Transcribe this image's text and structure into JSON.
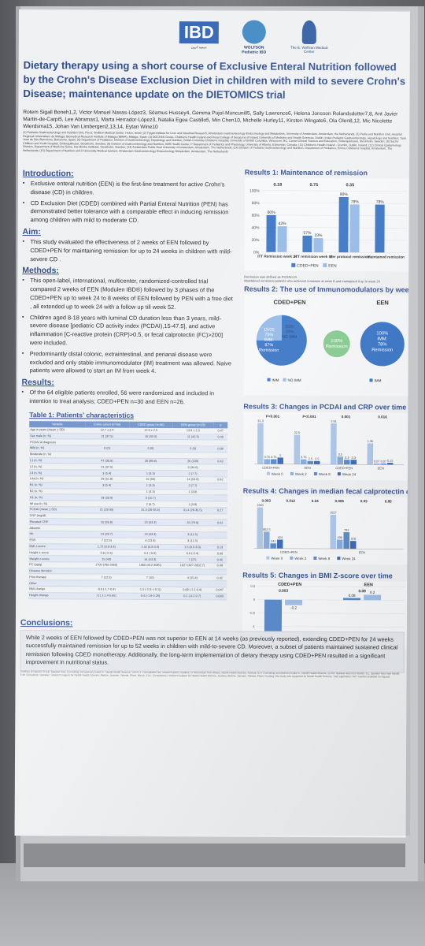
{
  "logos": {
    "ibd": "IBD",
    "ibd_sub": "جمعية كرون",
    "wolfson": "WOLFSON",
    "wolfson_sub": "Pediatric IBD",
    "edith": "The E. Wolfson Medical Center"
  },
  "title": "Dietary therapy using a short course of Exclusive Enteral Nutrition followed by the Crohn's Disease Exclusion Diet in children with mild to severe Crohn's Disease; maintenance update on the DIETOMICS trial",
  "authors": "Rotem Sigall Boneh1,2, Victor Manuel Navas-López3, Séamus Hussey4, Gemma Pujol-Muncunill5, Sally Lawrence6, Helena Jonsson Rolandsdotter7,8, Ant Javier Martin-de-Carpi5, Lee Abramas1, Marta Herrador-López3, Natalia Egea Castillo5, Min Chen10, Michelle Hurley11, Kirsten Wingate6, Ola Olen8,12, Mic Nicolette Wierdsma15, Johan Van Limbergen2,13,14, Eytan Wine10",
  "affiliations": "(1) Pediatric Gastroenterology and Nutrition Unit, The E. Wolfson Medical Center, Holon, Israel; (2) Tytgat Institute for Liver and Intestinal Research, Amsterdam Gastroenterology Endocrinology and Metabolism, University of Amsterdam, Amsterdam, the Netherlands; (3) Pedia and Nutrition Unit, Hospital Regional Universitario de Málaga, Biomedical Research Institute of Málaga (IBIMA), Málaga, Spain; (4) DOCHAS Group, Children's Health Ireland and Royal College of Surgeons of Ireland University of Medicine and Health Sciences, Dublin, Irelan Pediatric Gastroenterology, Hepatology and Nutrition, Sant Joan de Déu Barcelona, Barcelona, Spain; (6) Department of Pediatrics, Division of Gastroenterology, Hepatology and Nutrition, British Columbia Children's Hospital, University of British Columbia, Vancouver, BC, Canad Clinical Science and Education, Södersjukhuset, Stockholm, Sweden; (8) Sachs' Children and Youth Hospital, Södersjukhuset, Stockholm, Sweden; (9) Division of Gastroenterology and Nutrition, KBR Health Center, P Department of Pediatrics and Physiology, University of Alberta, Edmonton, Canada; (11) Children's Health Ireland - Crumlin, Dublin, Ireland; (12) Clinical Epidemiology Division, Department of Medicine Solna, Karolinska Institutet, Stockholm, Sweden; (13) Amsterdam Public Heal University of Amsterdam, Amsterdam, The Netherlands; (14) Division of Pediatric Gastroenterology and Nutrition, Department of Pediatrics, Emma Children's Hospital, Amsterdam, The Netherlands; (15) Department of Nutrition and D University Medical Centers, Amsterdam Gastroenterology Endocrinology Metabolism, Amsterdam, The Netherlands",
  "intro": {
    "heading": "Introduction:",
    "items": [
      "Exclusive enteral nutrition (EEN) is the first-line treatment for active Crohn's disease (CD) in children.",
      "CD Exclusion Diet (CDED) combined with Partial Enteral Nutrition (PEN) has demonstrated better tolerance with a comparable effect in inducing remission among children with mild to moderate CD."
    ]
  },
  "aim": {
    "heading": "Aim:",
    "items": [
      "This study evaluated the effectiveness of 2 weeks of EEN followed by CDED+PEN for maintaining remission for up to 24 weeks in children with mild-severe CD ."
    ]
  },
  "methods": {
    "heading": "Methods:",
    "items": [
      "This open-label, international, multicenter, randomized-controlled trial compared 2 weeks of EEN (Modulen IBD®) followed by 3 phases of the CDED+PEN up to week 24 to 8 weeks of EEN followed by PEN with a free diet , all extended up to week 24 with a follow up till week 52.",
      "Children aged 8-18 years with luminal CD duration less than 3 years, mild-severe disease [pediatric CD activity index (PCDAI),15-47.5], and active inflammation [C-reactive protein (CRP)>0.5, or fecal calprotectin (FC)>200] were included.",
      "Predominantly distal colonic, extraintestinal, and perianal disease were excluded and only stable immunomodulator (IM) treatment was allowed. Naive patients were allowed to start an IM from week 4."
    ]
  },
  "results": {
    "heading": "Results:",
    "items": [
      "Of the 64 eligible patients enrolled, 56 were randomized and included in intention to treat analysis; CDED+PEN n=30 and EEN n=26."
    ]
  },
  "table": {
    "title": "Table 1: Patients' characteristics",
    "headers": [
      "Variable",
      "Entire cohort (n=56)",
      "CDED group (n=30)",
      "EEN group (n=26)",
      "p"
    ],
    "rows": [
      [
        "Age in years (mean ± SD)",
        "12.7 ± 2.4",
        "12.9 ± 2.5",
        "13.9 ± 2.3",
        "0.47"
      ],
      [
        "Sex male (n, %)",
        "21 (37.5)",
        "10 (33.3)",
        "11 (42.3)",
        "0.46"
      ],
      [
        "PCDAI at diagnosis",
        "",
        "",
        "",
        ""
      ],
      [
        "Mild (n, %)",
        "0 (0)",
        "0 (0)",
        "0 (0)",
        "0.98"
      ],
      [
        "Moderate (n, %)",
        "",
        "",
        "",
        ""
      ],
      [
        "L1 (n, %)",
        "47 (33.6)",
        "26 (86.6)",
        "26 (100)",
        "0.42"
      ],
      [
        "L2 (n, %)",
        "21 (37.5)",
        "",
        "9 (34.6)",
        ""
      ],
      [
        "L3 (n, %)",
        "3 (5.4)",
        "1 (3.3)",
        "2 (7.7)",
        ""
      ],
      [
        "L4a (n, %)",
        "29 (51.8)",
        "15 (50)",
        "14 (53.8)",
        "0.42"
      ],
      [
        "B1 (n, %)",
        "3 (5.4)",
        "1 (3.3)",
        "2 (7.7)",
        ""
      ],
      [
        "B2 (n, %)",
        "",
        "1 (3.3)",
        "1 (3.8)",
        ""
      ],
      [
        "G1 (n, %)",
        "19 (33.9)",
        "3 (10.7)",
        "",
        ""
      ],
      [
        "IM use (n, %)",
        "",
        "2 (6.7)",
        "1 (3.8)",
        ""
      ],
      [
        "PCDAI (mean ± SD)",
        "21 (28-35)",
        "31.3 (28-35.6)",
        "31.4 (28-35.5)",
        "0.27"
      ],
      [
        "CRP (mg/dl)",
        "",
        "",
        "",
        ""
      ],
      [
        "Elevated CRP",
        "15 (26.8)",
        "13 (43.3)",
        "15 (76.9)",
        "0.01"
      ],
      [
        "Albumin",
        "",
        "",
        "",
        ""
      ],
      [
        "Hb",
        "14 (28.7)",
        "13 (43.3)",
        "3 (11.5)",
        ""
      ],
      [
        "ESR",
        "7 (12.5)",
        "4 (13.3)",
        "3 (11.5)",
        ""
      ],
      [
        "BMI z-score",
        "1.72 (0.9-3.8)",
        "1.42 (0.8-4.0)",
        "1.5 (0.5-3.3)",
        "0.13"
      ],
      [
        "Height z-score",
        "0.6 (-0.5)",
        "0.4 (-0.6)",
        "0.6 (-0.4)",
        "0.93"
      ],
      [
        "Weight z-score",
        "15 (43)",
        "16 (53.3)",
        "7 (27)",
        "0.05"
      ],
      [
        "FC (μg/g)",
        "1700 (780-2950)",
        "1960 (612-3090)",
        "1627 (827-2802.7)",
        "0.49"
      ],
      [
        "Disease duration",
        "",
        "",
        "",
        ""
      ],
      [
        "Prior therapy",
        "7 (12.5)",
        "7 (10)",
        "4 (15.4)",
        "0.42"
      ],
      [
        "Other",
        "",
        "",
        "",
        ""
      ],
      [
        "BMI change",
        "-0.6 (-1.7-0.4)",
        "-1.2 (-2.3- (-0.1))",
        "0.08 (-1.1-0.4)",
        "0.047"
      ],
      [
        "Height change",
        "-0.1 (-1.4-0.65)",
        "-0.6 (-1.6-0.26)",
        "0.1 (-0.2-0.7)",
        "0.003"
      ]
    ]
  },
  "r1": {
    "title": "Results 1: Maintenance of remission",
    "pvalues": [
      "0.18",
      "0.75",
      "0.35"
    ],
    "legend": [
      "CDED+PEN",
      "EEN"
    ],
    "note": "Remission was defined as PCDAI<10.\nMaintained remission-patients who achieved remission at week 8 and maintained it up to week 24"
  },
  "r2": {
    "title": "Results 2: The use of Immunomodulators by week 24",
    "cded": "CDED+PEN",
    "een": "EEN",
    "cded_imm": "15/20\n75%\nIMM:\n87%\nRemission",
    "cded_no": "5/20\n25%\nNO IMM",
    "cded_no_rem": "100%\nRemission",
    "een_imm": "100%\nIMM:\n78%\nRemission",
    "legend": [
      "IMM",
      "NO IMM"
    ]
  },
  "r3": {
    "title": "Results 3: Changes in PCDAI and CRP over time",
    "legend": [
      "Week 0",
      "Week 2",
      "Week 8",
      "Week 24"
    ]
  },
  "r4": {
    "title": "Results 4: Changes in median fecal calprotectin over time",
    "legend": [
      "Week 0",
      "Week 2",
      "Week 8",
      "Week 24"
    ]
  },
  "r5": {
    "title": "Results 5: Changes in BMI Z-score over time",
    "cded": "CDED+PEN",
    "een": "EEN",
    "legend": [
      "Baseline",
      "Week 24"
    ]
  },
  "conclusions": {
    "heading": "Conclusions:",
    "text": "While 2 weeks of EEN followed by CDED+PEN was not superior to EEN at 14 weeks (as previously reported), extending CDED+PEN for 24 weeks successfully maintained remission for up to 52 weeks in children with mild-to-severe CD. Moreover, a subset of patients maintained sustained clinical remission following CDED monotherapy. Additionally, the long-term implementation of dietary therapy using CDED+PEN resulted in a significant improvement in nutritional status."
  },
  "references": "Conflicts of interest: R.S.B. Speaker fees, Consulting and advisory board N - Nestlé Health Science; V.M.N.-L. Consultation fee, research grant, royalties, or honorarium from Abbvie, Nestlé Health Science, Nutricia; S.H. Consulting and advisory board N - Nestlé Health Science; G.P.M. Speaker fees from Nestlé; S.L. Speaker fees from Nestlé; E.W. Consultant / speaker / research support for Nestlé Health Science, AbbVie, Janssen, Takeda, Pfizer, Merck; J.V.L. Consultancy / research support for Nestlé Health Science, Nutricia, AbbVie, Janssen, Takeda, Pfizer. Funding: this study was supported by Nestlé Health Science. Trial registration: NCT number available on request.",
  "chart_data": [
    {
      "type": "bar",
      "id": "r1",
      "categories": [
        "ITT Remission week 24",
        "ITT remission week 52",
        "Per protocol remission week 24",
        "Maintained remission"
      ],
      "series": [
        {
          "name": "CDED+PEN",
          "values": [
            60,
            27,
            90,
            78
          ]
        },
        {
          "name": "EEN",
          "values": [
            42,
            23,
            78,
            null
          ]
        }
      ],
      "ylim": [
        0,
        100
      ]
    },
    {
      "type": "pie",
      "id": "r2-cded",
      "labels": [
        "IMM",
        "NO IMM"
      ],
      "values": [
        75,
        25
      ]
    },
    {
      "type": "pie",
      "id": "r2-een",
      "labels": [
        "IMM"
      ],
      "values": [
        100
      ]
    },
    {
      "type": "bar",
      "id": "r3",
      "groups": [
        "CDED+PEN",
        "EEN",
        "CDED+PEN",
        "EEN"
      ],
      "labels": [
        "PCDAI",
        "PCDAI",
        "CRP",
        "CRP"
      ],
      "series": [
        {
          "name": "Week 0",
          "values": [
            31.3,
            22.5,
            2.61,
            1.35
          ]
        },
        {
          "name": "Week 2",
          "values": [
            3.75,
            3.75,
            0.5,
            0.07
          ]
        },
        {
          "name": "Week 8",
          "values": [
            3.75,
            2.5,
            0.3,
            0.07
          ]
        },
        {
          "name": "Week 24",
          "values": [
            5,
            2.5,
            0.3,
            0.12
          ]
        }
      ],
      "pvalues": [
        "P<0.001",
        "P<0.001",
        "0.001",
        "0.016"
      ]
    },
    {
      "type": "bar",
      "id": "r4",
      "groups": [
        "CDED+PEN",
        "EEN"
      ],
      "series": [
        {
          "name": "Week 0",
          "values": [
            1960,
            1627
          ]
        },
        {
          "name": "Week 2",
          "values": [
            802.5,
            436
          ]
        },
        {
          "name": "Week 8",
          "values": [
            241,
            791
          ]
        },
        {
          "name": "Week 24",
          "values": [
            424,
            378
          ]
        }
      ],
      "pvalues": [
        "0.003",
        "0.012",
        "0.24",
        "0.005",
        "0.03",
        "0.85"
      ]
    },
    {
      "type": "bar",
      "id": "r5",
      "groups": [
        "CDED+PEN",
        "EEN"
      ],
      "series": [
        {
          "name": "Baseline",
          "values": [
            -1.3,
            0.08
          ]
        },
        {
          "name": "Week 24",
          "values": [
            -0.2,
            0.2
          ]
        }
      ],
      "pvalues": [
        "0.003",
        "0.09"
      ]
    }
  ]
}
